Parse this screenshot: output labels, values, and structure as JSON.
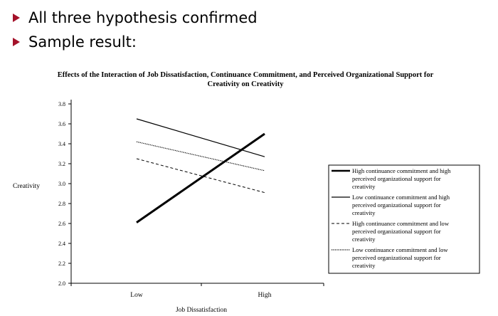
{
  "slide": {
    "bullets": [
      "All three hypothesis confirmed",
      "Sample result:"
    ],
    "bullet_color": "#a4122a"
  },
  "chart_data": {
    "type": "line",
    "title": "Effects of the Interaction of Job Dissatisfaction, Continuance Commitment, and Perceived Organizational Support for Creativity on Creativity",
    "title_lines": [
      "Effects of the Interaction of Job Dissatisfaction, Continuance Commitment, and Perceived Organizational Support for",
      "Creativity on Creativity"
    ],
    "xlabel": "Job Dissatisfaction",
    "ylabel": "Creativity",
    "categories": [
      "Low",
      "High"
    ],
    "ylim": [
      2.0,
      3.8
    ],
    "yticks": [
      "2.0",
      "2.2",
      "2.4",
      "2.6",
      "2.8",
      "3.0",
      "3.2",
      "3.4",
      "3.6",
      "3.8"
    ],
    "grid": false,
    "legend_position": "right",
    "series": [
      {
        "name": "High continuance commitment and high perceived organizational support for creativity",
        "legend_lines": [
          "High continuance commitment and high",
          "perceived organizational support for",
          "creativity"
        ],
        "values": [
          2.61,
          3.5
        ],
        "style": "thick-solid"
      },
      {
        "name": "Low continuance commitment and high perceived organizational support for creativity",
        "legend_lines": [
          "Low continuance commitment and high",
          "perceived organizational support for",
          "creativity"
        ],
        "values": [
          3.65,
          3.27
        ],
        "style": "solid"
      },
      {
        "name": "High continuance commitment and low perceived organizational support for creativity",
        "legend_lines": [
          "High continuance commitment and low",
          "perceived organizational support for",
          "creativity"
        ],
        "values": [
          3.25,
          2.91
        ],
        "style": "dashed"
      },
      {
        "name": "Low continuance commitment and low perceived organizational support for creativity",
        "legend_lines": [
          "Low continuance commitment and low",
          "perceived organizational support for",
          "creativity"
        ],
        "values": [
          3.42,
          3.13
        ],
        "style": "dotted"
      }
    ]
  }
}
